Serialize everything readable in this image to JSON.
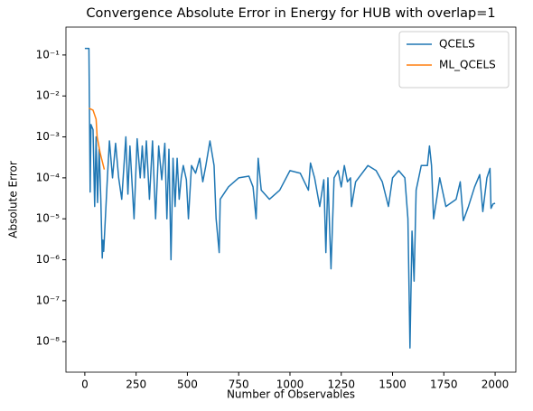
{
  "chart_data": {
    "type": "line",
    "title": "Convergence Absolute Error in Energy for HUB with overlap=1",
    "x_label": "Number of Observables",
    "y_label": "Absolute Error",
    "yscale": "log",
    "xlim": [
      -92,
      2101
    ],
    "ylim": [
      1.8e-09,
      0.48
    ],
    "xticks": [
      0,
      250,
      500,
      750,
      1000,
      1250,
      1500,
      1750,
      2000
    ],
    "yticks": [
      {
        "value": 1e-08,
        "label": "10⁻⁸"
      },
      {
        "value": 1e-07,
        "label": "10⁻⁷"
      },
      {
        "value": 1e-06,
        "label": "10⁻⁶"
      },
      {
        "value": 1e-05,
        "label": "10⁻⁵"
      },
      {
        "value": 0.0001,
        "label": "10⁻⁴"
      },
      {
        "value": 0.001,
        "label": "10⁻³"
      },
      {
        "value": 0.01,
        "label": "10⁻²"
      },
      {
        "value": 0.1,
        "label": "10⁻¹"
      }
    ],
    "legend": "upper right",
    "series": [
      {
        "name": "QCELS",
        "color": "#1f77b4",
        "x": [
          0,
          20,
          26,
          30,
          40,
          48,
          55,
          62,
          70,
          78,
          85,
          88,
          92,
          100,
          110,
          120,
          135,
          150,
          165,
          180,
          200,
          210,
          220,
          240,
          255,
          270,
          280,
          290,
          300,
          315,
          330,
          345,
          360,
          375,
          390,
          400,
          410,
          420,
          430,
          440,
          450,
          460,
          470,
          480,
          495,
          505,
          520,
          540,
          560,
          575,
          590,
          610,
          630,
          640,
          655,
          660,
          700,
          750,
          800,
          820,
          835,
          845,
          860,
          900,
          950,
          1000,
          1050,
          1090,
          1100,
          1120,
          1145,
          1165,
          1175,
          1185,
          1200,
          1215,
          1235,
          1250,
          1265,
          1280,
          1295,
          1300,
          1320,
          1380,
          1420,
          1450,
          1480,
          1500,
          1530,
          1560,
          1575,
          1585,
          1595,
          1605,
          1615,
          1640,
          1670,
          1680,
          1690,
          1700,
          1715,
          1730,
          1760,
          1810,
          1830,
          1845,
          1870,
          1900,
          1925,
          1940,
          1960,
          1975,
          1980,
          1990,
          2000
        ],
        "values": [
          0.145,
          0.145,
          4.5e-05,
          0.002,
          0.0015,
          2e-05,
          0.001,
          2.5e-05,
          0.0005,
          3e-05,
          1.1e-06,
          3e-06,
          1.6e-06,
          1e-05,
          0.0001,
          0.0008,
          0.0001,
          0.0007,
          0.0001,
          3e-05,
          0.001,
          4e-05,
          0.0006,
          1e-05,
          0.0009,
          0.0001,
          0.0006,
          0.0001,
          0.0008,
          3e-05,
          0.0008,
          1e-05,
          0.0006,
          9e-05,
          0.0007,
          1e-05,
          0.0005,
          1e-06,
          0.0003,
          2e-05,
          0.0003,
          3e-05,
          0.0001,
          0.0002,
          9e-05,
          1e-05,
          0.0002,
          0.00013,
          0.0003,
          8e-05,
          0.0002,
          0.0008,
          0.0002,
          1e-05,
          1.5e-06,
          3e-05,
          6e-05,
          0.0001,
          0.00011,
          6e-05,
          1e-05,
          0.0003,
          5e-05,
          3e-05,
          5e-05,
          0.00015,
          0.00013,
          5e-05,
          0.00023,
          0.0001,
          2e-05,
          9e-05,
          1.5e-06,
          0.0001,
          6e-07,
          0.0001,
          0.00015,
          6e-05,
          0.0002,
          8e-05,
          0.0001,
          2e-05,
          8e-05,
          0.0002,
          0.00015,
          8e-05,
          2e-05,
          0.0001,
          0.00015,
          0.0001,
          1e-05,
          7e-09,
          5e-06,
          3e-07,
          5e-05,
          0.0002,
          0.0002,
          0.0006,
          0.0002,
          1e-05,
          3e-05,
          0.0001,
          2e-05,
          3e-05,
          8e-05,
          9e-06,
          2e-05,
          6e-05,
          0.00012,
          1.5e-05,
          0.0001,
          0.00017,
          1.8e-05,
          2.3e-05,
          2.4e-05
        ]
      },
      {
        "name": "ML_QCELS",
        "color": "#ff7f0e",
        "x": [
          20,
          40,
          55,
          60,
          75,
          95
        ],
        "values": [
          0.005,
          0.0045,
          0.0027,
          0.001,
          0.0004,
          0.00016
        ]
      }
    ]
  }
}
